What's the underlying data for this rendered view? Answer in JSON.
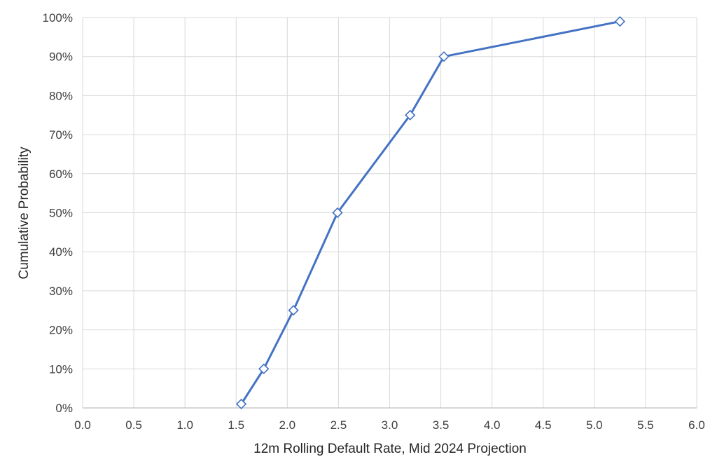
{
  "chart_data": {
    "type": "line",
    "title": "",
    "xlabel": "12m Rolling Default Rate, Mid 2024 Projection",
    "ylabel": "Cumulative Probability",
    "xlim": [
      0,
      6
    ],
    "ylim": [
      0,
      1
    ],
    "x_ticks": [
      "0.0",
      "0.5",
      "1.0",
      "1.5",
      "2.0",
      "2.5",
      "3.0",
      "3.5",
      "4.0",
      "4.5",
      "5.0",
      "5.5",
      "6.0"
    ],
    "y_ticks": [
      "0%",
      "10%",
      "20%",
      "30%",
      "40%",
      "50%",
      "60%",
      "70%",
      "80%",
      "90%",
      "100%"
    ],
    "grid": true,
    "legend": "none",
    "series": [
      {
        "color": "#4472c4",
        "marker": "diamond-open",
        "points": [
          {
            "x": 1.55,
            "y": 0.01
          },
          {
            "x": 1.77,
            "y": 0.1
          },
          {
            "x": 2.06,
            "y": 0.25
          },
          {
            "x": 2.49,
            "y": 0.5
          },
          {
            "x": 3.2,
            "y": 0.75
          },
          {
            "x": 3.53,
            "y": 0.9
          },
          {
            "x": 5.25,
            "y": 0.99
          }
        ]
      }
    ]
  }
}
